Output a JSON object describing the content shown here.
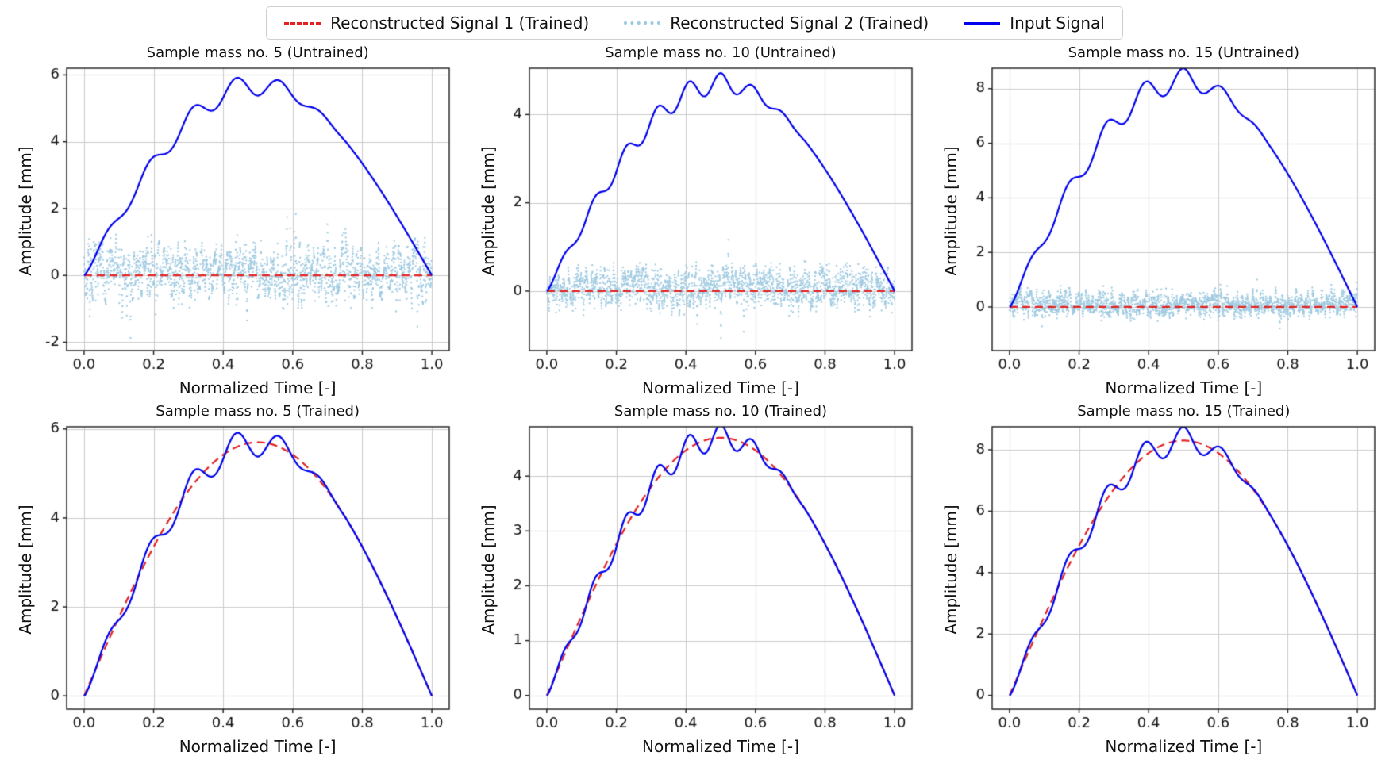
{
  "legend": {
    "items": [
      {
        "label": "Reconstructed Signal 1 (Trained)",
        "color": "#e32222",
        "style": "dashed"
      },
      {
        "label": "Reconstructed Signal 2 (Trained)",
        "color": "#9ecae1",
        "style": "dotted"
      },
      {
        "label": "Input Signal",
        "color": "#0000ee",
        "style": "solid"
      }
    ]
  },
  "chart_data": [
    {
      "type": "line",
      "title": "Sample mass no. 5 (Untrained)",
      "xlabel": "Normalized Time [-]",
      "ylabel": "Amplitude [mm]",
      "xlim": [
        -0.05,
        1.05
      ],
      "ylim": [
        -2.25,
        6.2
      ],
      "xticks": [
        0.0,
        0.2,
        0.4,
        0.6,
        0.8,
        1.0
      ],
      "yticks": [
        -2,
        0,
        2,
        4,
        6
      ],
      "grid": true,
      "series": [
        {
          "name": "Reconstructed Signal 2 (Trained)",
          "color": "#9ecae1",
          "style": "dotted",
          "signal": {
            "kind": "noise",
            "mean": 0.1,
            "amp": 1.0,
            "points": 750,
            "seed": 7
          }
        },
        {
          "name": "Reconstructed Signal 1 (Trained)",
          "color": "#e32222",
          "style": "dashed",
          "signal": {
            "kind": "flat",
            "value": 0
          }
        },
        {
          "name": "Input Signal",
          "color": "#0000ee",
          "style": "solid",
          "signal": {
            "kind": "half_sine_ripple",
            "peak": 5.7,
            "ripple_amp": 0.32,
            "ripple_cycles": 8
          }
        }
      ]
    },
    {
      "type": "line",
      "title": "Sample mass no. 10 (Untrained)",
      "xlabel": "Normalized Time [-]",
      "ylabel": "Amplitude [mm]",
      "xlim": [
        -0.05,
        1.05
      ],
      "ylim": [
        -1.35,
        5.05
      ],
      "xticks": [
        0.0,
        0.2,
        0.4,
        0.6,
        0.8,
        1.0
      ],
      "yticks": [
        0,
        2,
        4
      ],
      "grid": true,
      "series": [
        {
          "name": "Reconstructed Signal 2 (Trained)",
          "color": "#9ecae1",
          "style": "dotted",
          "signal": {
            "kind": "noise",
            "mean": 0.08,
            "amp": 0.55,
            "points": 750,
            "seed": 8
          }
        },
        {
          "name": "Reconstructed Signal 1 (Trained)",
          "color": "#e32222",
          "style": "dashed",
          "signal": {
            "kind": "flat",
            "value": 0
          }
        },
        {
          "name": "Input Signal",
          "color": "#0000ee",
          "style": "solid",
          "signal": {
            "kind": "half_sine_ripple",
            "peak": 4.7,
            "ripple_amp": 0.24,
            "ripple_cycles": 11
          }
        }
      ]
    },
    {
      "type": "line",
      "title": "Sample mass no. 15 (Untrained)",
      "xlabel": "Normalized Time [-]",
      "ylabel": "Amplitude [mm]",
      "xlim": [
        -0.05,
        1.05
      ],
      "ylim": [
        -1.6,
        8.75
      ],
      "xticks": [
        0.0,
        0.2,
        0.4,
        0.6,
        0.8,
        1.0
      ],
      "yticks": [
        0,
        2,
        4,
        6,
        8
      ],
      "grid": true,
      "series": [
        {
          "name": "Reconstructed Signal 2 (Trained)",
          "color": "#9ecae1",
          "style": "dotted",
          "signal": {
            "kind": "noise",
            "mean": 0.12,
            "amp": 0.55,
            "points": 750,
            "seed": 9
          }
        },
        {
          "name": "Reconstructed Signal 1 (Trained)",
          "color": "#e32222",
          "style": "dashed",
          "signal": {
            "kind": "flat",
            "value": 0
          }
        },
        {
          "name": "Input Signal",
          "color": "#0000ee",
          "style": "solid",
          "signal": {
            "kind": "half_sine_ripple",
            "peak": 8.3,
            "ripple_amp": 0.45,
            "ripple_cycles": 9
          }
        }
      ]
    },
    {
      "type": "line",
      "title": "Sample mass no. 5 (Trained)",
      "xlabel": "Normalized Time [-]",
      "ylabel": "Amplitude [mm]",
      "xlim": [
        -0.05,
        1.05
      ],
      "ylim": [
        -0.3,
        6.05
      ],
      "xticks": [
        0.0,
        0.2,
        0.4,
        0.6,
        0.8,
        1.0
      ],
      "yticks": [
        0,
        2,
        4,
        6
      ],
      "grid": true,
      "series": [
        {
          "name": "Reconstructed Signal 1 (Trained)",
          "color": "#e32222",
          "style": "dashed",
          "signal": {
            "kind": "half_sine",
            "peak": 5.7
          }
        },
        {
          "name": "Reconstructed Signal 2 (Trained)",
          "color": "#9ecae1",
          "style": "dotted",
          "signal": {
            "kind": "half_sine_ripple",
            "peak": 5.7,
            "ripple_amp": 0.32,
            "ripple_cycles": 8
          }
        },
        {
          "name": "Input Signal",
          "color": "#0000ee",
          "style": "solid",
          "signal": {
            "kind": "half_sine_ripple",
            "peak": 5.7,
            "ripple_amp": 0.32,
            "ripple_cycles": 8
          }
        }
      ]
    },
    {
      "type": "line",
      "title": "Sample mass no. 10 (Trained)",
      "xlabel": "Normalized Time [-]",
      "ylabel": "Amplitude [mm]",
      "xlim": [
        -0.05,
        1.05
      ],
      "ylim": [
        -0.25,
        4.9
      ],
      "xticks": [
        0.0,
        0.2,
        0.4,
        0.6,
        0.8,
        1.0
      ],
      "yticks": [
        0,
        1,
        2,
        3,
        4
      ],
      "grid": true,
      "series": [
        {
          "name": "Reconstructed Signal 1 (Trained)",
          "color": "#e32222",
          "style": "dashed",
          "signal": {
            "kind": "half_sine",
            "peak": 4.7
          }
        },
        {
          "name": "Reconstructed Signal 2 (Trained)",
          "color": "#9ecae1",
          "style": "dotted",
          "signal": {
            "kind": "half_sine_ripple",
            "peak": 4.7,
            "ripple_amp": 0.24,
            "ripple_cycles": 11
          }
        },
        {
          "name": "Input Signal",
          "color": "#0000ee",
          "style": "solid",
          "signal": {
            "kind": "half_sine_ripple",
            "peak": 4.7,
            "ripple_amp": 0.24,
            "ripple_cycles": 11
          }
        }
      ]
    },
    {
      "type": "line",
      "title": "Sample mass no. 15 (Trained)",
      "xlabel": "Normalized Time [-]",
      "ylabel": "Amplitude [mm]",
      "xlim": [
        -0.05,
        1.05
      ],
      "ylim": [
        -0.45,
        8.75
      ],
      "xticks": [
        0.0,
        0.2,
        0.4,
        0.6,
        0.8,
        1.0
      ],
      "yticks": [
        0,
        2,
        4,
        6,
        8
      ],
      "grid": true,
      "series": [
        {
          "name": "Reconstructed Signal 1 (Trained)",
          "color": "#e32222",
          "style": "dashed",
          "signal": {
            "kind": "half_sine",
            "peak": 8.3
          }
        },
        {
          "name": "Reconstructed Signal 2 (Trained)",
          "color": "#9ecae1",
          "style": "dotted",
          "signal": {
            "kind": "half_sine_ripple",
            "peak": 8.3,
            "ripple_amp": 0.45,
            "ripple_cycles": 9
          }
        },
        {
          "name": "Input Signal",
          "color": "#0000ee",
          "style": "solid",
          "signal": {
            "kind": "half_sine_ripple",
            "peak": 8.3,
            "ripple_amp": 0.45,
            "ripple_cycles": 9
          }
        }
      ]
    }
  ]
}
